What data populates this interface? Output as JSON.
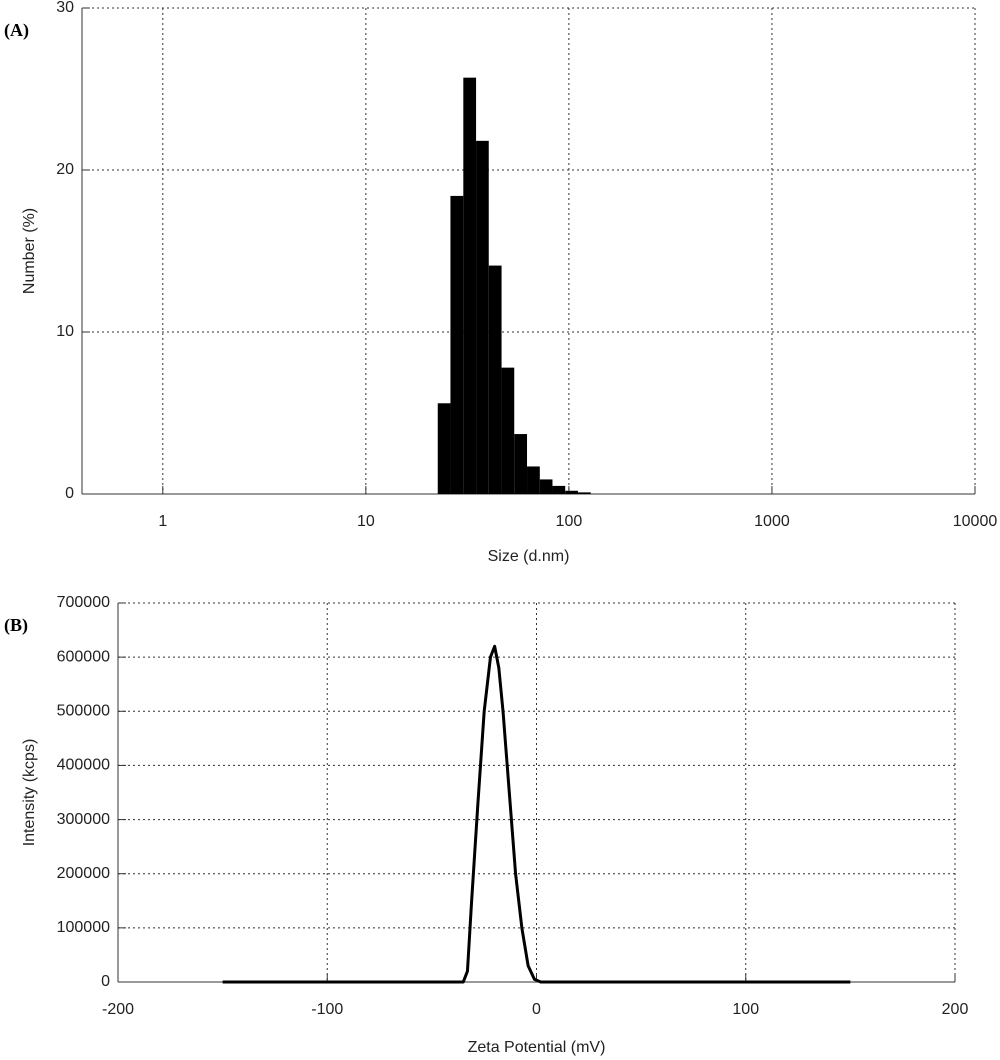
{
  "chart_data": [
    {
      "type": "histogram",
      "panel_label": "(A)",
      "x_label": "Size (d.nm)",
      "y_label": "Number (%)",
      "xscale": "log",
      "xlim": [
        0.4,
        10000
      ],
      "xticks": [
        1,
        10,
        100,
        1000,
        10000
      ],
      "ylim": [
        0,
        30
      ],
      "yticks": [
        0,
        10,
        20,
        30
      ],
      "grid": true,
      "color": "#000000",
      "bins": [
        22.6,
        26.1,
        30.2,
        34.9,
        40.3,
        46.6,
        53.8,
        62.2,
        71.9,
        83.0,
        95.9,
        110.9,
        128.1
      ],
      "values": [
        5.6,
        18.4,
        25.7,
        21.8,
        14.1,
        7.8,
        3.7,
        1.7,
        0.9,
        0.5,
        0.2,
        0.1
      ]
    },
    {
      "type": "line",
      "panel_label": "(B)",
      "x_label": "Zeta Potential (mV)",
      "y_label": "Intensity (kcps)",
      "xlim": [
        -200,
        200
      ],
      "xticks": [
        -200,
        -100,
        0,
        100,
        200
      ],
      "ylim": [
        0,
        700000
      ],
      "yticks": [
        0,
        100000,
        200000,
        300000,
        400000,
        500000,
        600000,
        700000
      ],
      "grid": true,
      "color": "#000000",
      "x": [
        -150,
        -40,
        -35,
        -33,
        -31,
        -28,
        -25,
        -22,
        -20,
        -18,
        -16,
        -13,
        -10,
        -7,
        -4,
        -1,
        2,
        150
      ],
      "values": [
        0,
        0,
        0,
        20000,
        150000,
        330000,
        500000,
        600000,
        620000,
        580000,
        500000,
        350000,
        200000,
        100000,
        30000,
        5000,
        0,
        0
      ]
    }
  ]
}
